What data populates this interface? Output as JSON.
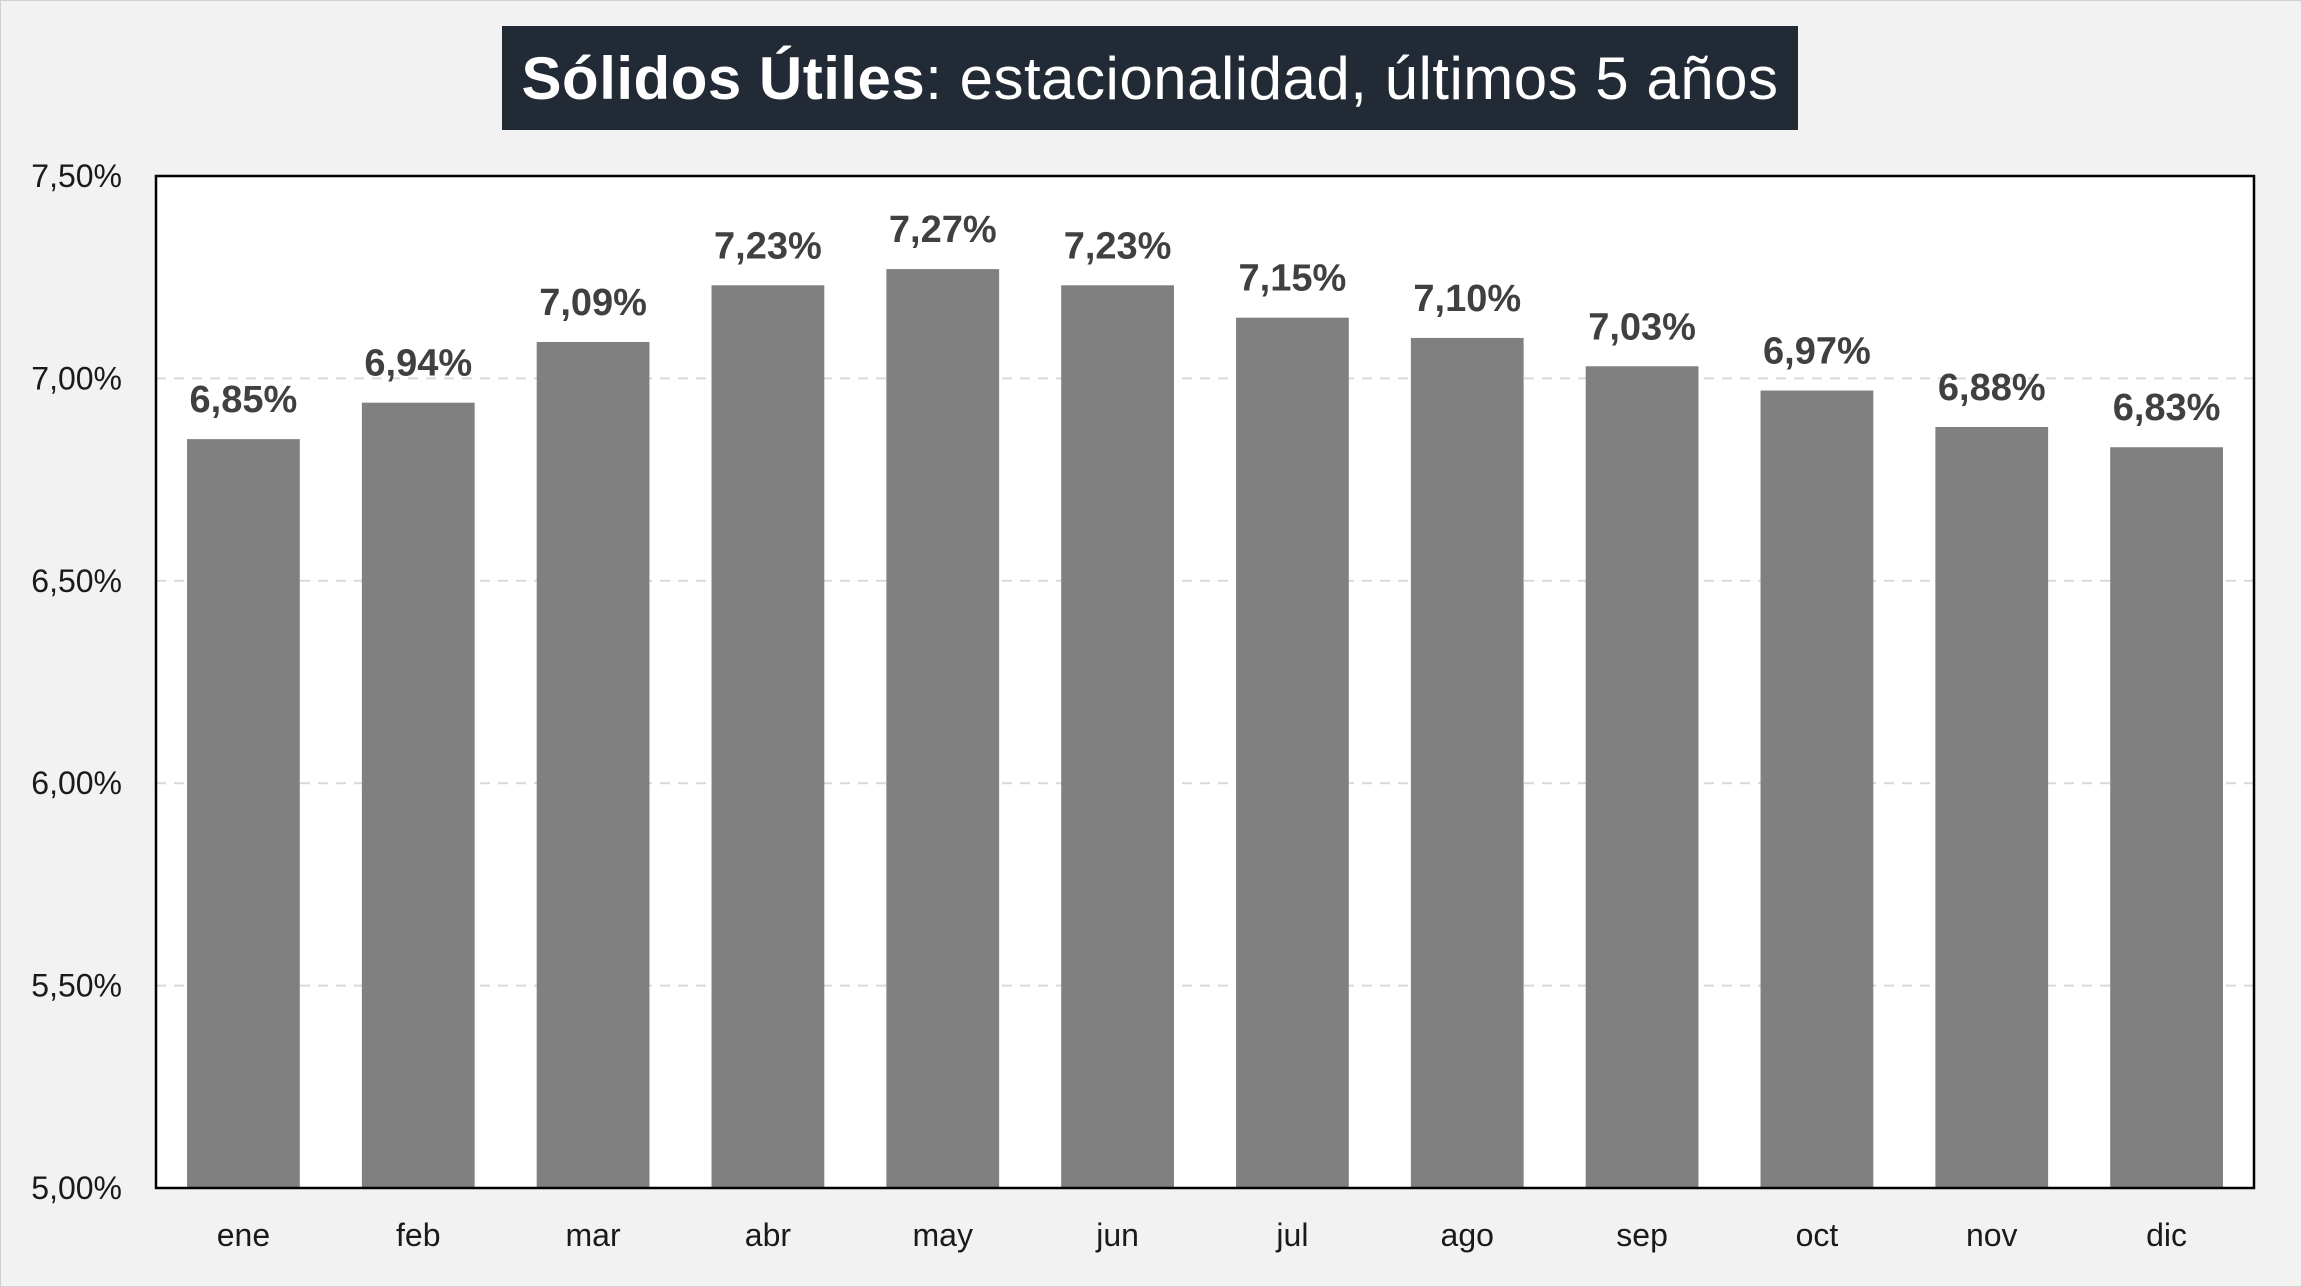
{
  "chart_data": {
    "type": "bar",
    "title_bold": "Sólidos Útiles",
    "title_rest": ": estacionalidad, últimos 5 años",
    "categories": [
      "ene",
      "feb",
      "mar",
      "abr",
      "may",
      "jun",
      "jul",
      "ago",
      "sep",
      "oct",
      "nov",
      "dic"
    ],
    "values": [
      6.85,
      6.94,
      7.09,
      7.23,
      7.27,
      7.23,
      7.15,
      7.1,
      7.03,
      6.97,
      6.88,
      6.83
    ],
    "data_labels": [
      "6,85%",
      "6,94%",
      "7,09%",
      "7,23%",
      "7,27%",
      "7,23%",
      "7,15%",
      "7,10%",
      "7,03%",
      "6,97%",
      "6,88%",
      "6,83%"
    ],
    "ylim": [
      5.0,
      7.5
    ],
    "yticks": [
      5.0,
      5.5,
      6.0,
      6.5,
      7.0,
      7.5
    ],
    "ytick_labels": [
      "5,00%",
      "5,50%",
      "6,00%",
      "6,50%",
      "7,00%",
      "7,50%"
    ],
    "xlabel": "",
    "ylabel": "",
    "grid": "horizontal-dashed",
    "legend": "none",
    "bar_color": "#808080",
    "title_background": "#222a35"
  }
}
